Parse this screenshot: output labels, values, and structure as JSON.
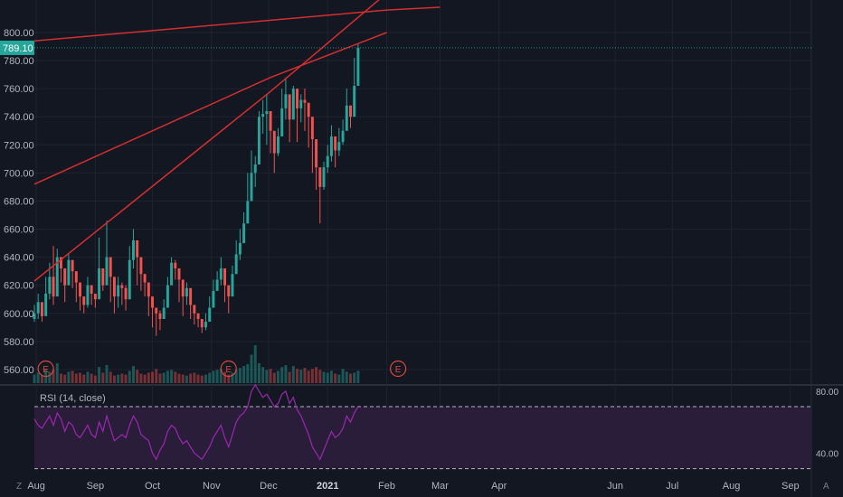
{
  "chart_data": {
    "type": "candlestick",
    "title": "",
    "price_axis": {
      "ticks": [
        "800.00",
        "780.00",
        "760.00",
        "740.00",
        "720.00",
        "700.00",
        "680.00",
        "660.00",
        "640.00",
        "620.00",
        "600.00",
        "580.00",
        "560.00"
      ],
      "tick_values": [
        800,
        780,
        760,
        740,
        720,
        700,
        680,
        660,
        640,
        620,
        600,
        580,
        560
      ],
      "ylim": [
        549,
        809
      ],
      "last_price_label": "789.10",
      "last_price": 789.1,
      "last_price_color": "#26a69a"
    },
    "time_axis": {
      "labels": [
        "Aug",
        "Sep",
        "Oct",
        "Nov",
        "Dec",
        "2021",
        "Feb",
        "Mar",
        "Apr",
        "Jun",
        "Jul",
        "Aug",
        "Sep"
      ],
      "label_dates": [
        "2020-08-01",
        "2020-09-01",
        "2020-10-01",
        "2020-11-01",
        "2020-12-01",
        "2021-01-01",
        "2021-02-01",
        "2021-03-01",
        "2021-04-01",
        "2021-06-01",
        "2021-07-01",
        "2021-08-01",
        "2021-09-01"
      ],
      "range": [
        "2020-07-31",
        "2021-09-12"
      ]
    },
    "candles": {
      "start_date": "2020-07-31",
      "step_days": 2,
      "up_color": "#26a69a",
      "down_color": "#ef5350",
      "close": [
        600,
        608,
        598,
        614,
        626,
        612,
        640,
        632,
        620,
        638,
        630,
        622,
        612,
        606,
        620,
        614,
        610,
        632,
        620,
        640,
        626,
        612,
        620,
        618,
        610,
        638,
        652,
        640,
        628,
        622,
        612,
        604,
        600,
        596,
        604,
        620,
        636,
        632,
        624,
        612,
        618,
        606,
        600,
        596,
        590,
        594,
        604,
        616,
        624,
        632,
        620,
        612,
        628,
        642,
        650,
        664,
        680,
        700,
        706,
        740,
        742,
        744,
        730,
        714,
        726,
        746,
        756,
        738,
        760,
        746,
        752,
        750,
        740,
        724,
        704,
        690,
        704,
        712,
        726,
        716,
        722,
        730,
        748,
        740,
        762,
        789
      ],
      "high": [
        606,
        614,
        604,
        626,
        636,
        648,
        646,
        640,
        630,
        642,
        634,
        628,
        618,
        612,
        626,
        620,
        614,
        654,
        628,
        666,
        640,
        618,
        626,
        622,
        620,
        648,
        660,
        648,
        636,
        628,
        618,
        608,
        604,
        602,
        610,
        626,
        640,
        638,
        632,
        620,
        622,
        610,
        604,
        600,
        596,
        600,
        612,
        624,
        630,
        640,
        628,
        618,
        634,
        652,
        660,
        672,
        700,
        716,
        712,
        744,
        752,
        756,
        740,
        720,
        732,
        760,
        768,
        746,
        762,
        750,
        756,
        760,
        744,
        730,
        712,
        700,
        708,
        720,
        734,
        722,
        732,
        738,
        760,
        748,
        782,
        792
      ],
      "low": [
        594,
        596,
        594,
        604,
        610,
        606,
        628,
        622,
        608,
        620,
        618,
        608,
        602,
        600,
        604,
        606,
        604,
        618,
        616,
        622,
        608,
        600,
        604,
        606,
        602,
        610,
        632,
        620,
        616,
        612,
        598,
        590,
        584,
        588,
        596,
        604,
        624,
        624,
        608,
        598,
        606,
        596,
        592,
        590,
        586,
        588,
        596,
        610,
        618,
        620,
        608,
        600,
        612,
        630,
        638,
        650,
        664,
        682,
        690,
        712,
        728,
        720,
        714,
        700,
        712,
        726,
        738,
        722,
        740,
        722,
        736,
        730,
        718,
        700,
        688,
        664,
        688,
        700,
        708,
        704,
        712,
        720,
        734,
        732,
        742,
        762
      ]
    },
    "volume": [
      18,
      22,
      16,
      30,
      24,
      28,
      42,
      20,
      18,
      24,
      26,
      20,
      22,
      18,
      24,
      20,
      16,
      34,
      22,
      38,
      24,
      16,
      18,
      20,
      18,
      26,
      36,
      28,
      20,
      18,
      22,
      24,
      30,
      20,
      22,
      26,
      28,
      24,
      20,
      18,
      16,
      20,
      22,
      18,
      16,
      18,
      22,
      26,
      28,
      30,
      24,
      18,
      22,
      28,
      32,
      36,
      40,
      60,
      80,
      42,
      34,
      28,
      30,
      22,
      26,
      34,
      38,
      24,
      36,
      30,
      28,
      32,
      26,
      30,
      34,
      28,
      24,
      22,
      26,
      20,
      18,
      30,
      24,
      20,
      22,
      26
    ],
    "earnings_markers": [
      "E",
      "E",
      "E"
    ],
    "earnings_dates": [
      "2020-08-06",
      "2020-11-10",
      "2021-02-07"
    ],
    "trendlines": [
      {
        "color": "#d32f2f",
        "points": [
          [
            "2020-07-31",
            692
          ],
          [
            "2020-12-02",
            768
          ],
          [
            "2021-02-01",
            800
          ]
        ]
      },
      {
        "color": "#d32f2f",
        "points": [
          [
            "2020-07-31",
            623
          ],
          [
            "2020-12-02",
            758
          ],
          [
            "2021-02-01",
            828
          ]
        ]
      },
      {
        "color": "#d32f2f",
        "points": [
          [
            "2020-07-31",
            794
          ],
          [
            "2021-02-01",
            816
          ],
          [
            "2021-03-01",
            818
          ]
        ]
      }
    ],
    "rsi": {
      "label": "RSI (14, close)",
      "color": "#9c27b0",
      "band_fill": "#2a1d3a",
      "axis_ticks": [
        "80.00",
        "40.00"
      ],
      "tick_values": [
        80,
        40
      ],
      "ylim": [
        28,
        84
      ],
      "band": [
        70,
        30
      ],
      "values": [
        62,
        58,
        56,
        60,
        64,
        58,
        66,
        62,
        54,
        60,
        58,
        52,
        50,
        54,
        58,
        52,
        50,
        60,
        54,
        64,
        56,
        48,
        50,
        52,
        50,
        58,
        64,
        60,
        52,
        50,
        48,
        40,
        36,
        42,
        46,
        54,
        58,
        56,
        50,
        46,
        48,
        44,
        40,
        38,
        36,
        40,
        44,
        50,
        54,
        58,
        50,
        44,
        52,
        60,
        64,
        66,
        70,
        80,
        84,
        80,
        76,
        78,
        74,
        70,
        72,
        78,
        80,
        72,
        76,
        68,
        64,
        58,
        52,
        44,
        40,
        36,
        42,
        48,
        54,
        50,
        52,
        56,
        64,
        60,
        66,
        70
      ]
    }
  },
  "side_icons": {
    "left": "Z",
    "right": "A"
  }
}
